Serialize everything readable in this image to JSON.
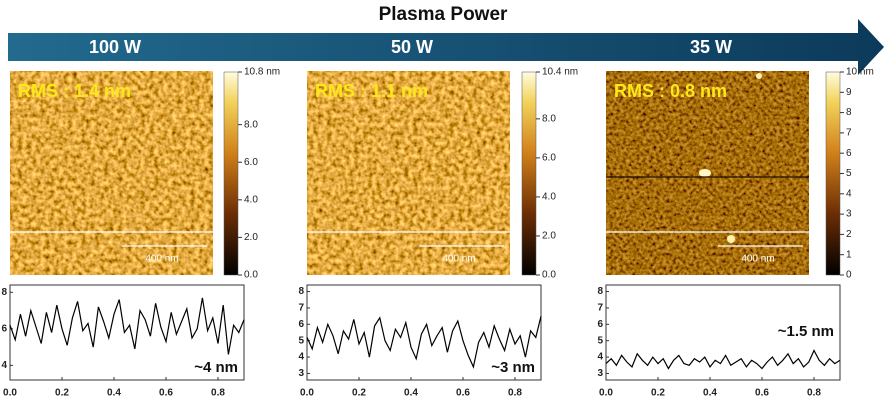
{
  "header": {
    "title": "Plasma Power"
  },
  "panels": [
    {
      "label": "100 W",
      "rms": "RMS : 1.4 nm",
      "scale_bar": "400 nm",
      "colorbar": {
        "lim": [
          0,
          10.8
        ],
        "ticks": [
          {
            "value": 0,
            "label": "0.0"
          },
          {
            "value": 2,
            "label": "2.0"
          },
          {
            "value": 4,
            "label": "4.0"
          },
          {
            "value": 6,
            "label": "6.0"
          },
          {
            "value": 8,
            "label": "8.0"
          },
          {
            "value": 10.8,
            "label": "10.8 nm"
          }
        ]
      }
    },
    {
      "label": "50 W",
      "rms": "RMS : 1.1 nm",
      "scale_bar": "400 nm",
      "colorbar": {
        "lim": [
          0,
          10.4
        ],
        "ticks": [
          {
            "value": 0,
            "label": "0.0"
          },
          {
            "value": 2,
            "label": "2.0"
          },
          {
            "value": 4,
            "label": "4.0"
          },
          {
            "value": 6,
            "label": "6.0"
          },
          {
            "value": 8,
            "label": "8.0"
          },
          {
            "value": 10.4,
            "label": "10.4 nm"
          }
        ]
      }
    },
    {
      "label": "35 W",
      "rms": "RMS : 0.8 nm",
      "scale_bar": "400 nm",
      "colorbar": {
        "lim": [
          0,
          10
        ],
        "ticks": [
          0,
          1,
          2,
          3,
          4,
          5,
          6,
          7,
          8,
          9,
          {
            "value": 10,
            "label": "10 nm"
          }
        ]
      }
    }
  ],
  "chart_data": [
    {
      "type": "line",
      "annotation": "~4 nm",
      "color": "#000000",
      "x": [
        0,
        0.02,
        0.04,
        0.06,
        0.08,
        0.1,
        0.12,
        0.14,
        0.16,
        0.18,
        0.2,
        0.22,
        0.24,
        0.26,
        0.28,
        0.3,
        0.32,
        0.34,
        0.36,
        0.38,
        0.4,
        0.42,
        0.44,
        0.46,
        0.48,
        0.5,
        0.52,
        0.54,
        0.56,
        0.58,
        0.6,
        0.62,
        0.64,
        0.66,
        0.68,
        0.7,
        0.72,
        0.74,
        0.76,
        0.78,
        0.8,
        0.82,
        0.84,
        0.86,
        0.88,
        0.9
      ],
      "values": [
        6.2,
        5.4,
        6.8,
        5.6,
        7.0,
        6.1,
        5.2,
        6.9,
        5.8,
        7.3,
        6.0,
        5.1,
        6.6,
        7.5,
        5.9,
        6.3,
        5.0,
        7.2,
        6.4,
        5.5,
        6.8,
        7.6,
        5.8,
        6.2,
        4.9,
        7.0,
        6.5,
        5.6,
        7.4,
        6.1,
        5.3,
        6.9,
        5.7,
        6.4,
        7.1,
        5.5,
        6.0,
        7.7,
        5.9,
        6.6,
        5.2,
        7.3,
        4.6,
        6.2,
        5.8,
        6.5
      ],
      "xlim": [
        0,
        0.9
      ],
      "ylim": [
        3.2,
        8.4
      ],
      "xticks": [
        {
          "value": 0,
          "label": "0.0"
        },
        0.2,
        0.4,
        0.6,
        0.8
      ],
      "yticks": [
        4,
        6,
        8
      ]
    },
    {
      "type": "line",
      "annotation": "~3 nm",
      "color": "#000000",
      "x": [
        0,
        0.02,
        0.04,
        0.06,
        0.08,
        0.1,
        0.12,
        0.14,
        0.16,
        0.18,
        0.2,
        0.22,
        0.24,
        0.26,
        0.28,
        0.3,
        0.32,
        0.34,
        0.36,
        0.38,
        0.4,
        0.42,
        0.44,
        0.46,
        0.48,
        0.5,
        0.52,
        0.54,
        0.56,
        0.58,
        0.6,
        0.62,
        0.64,
        0.66,
        0.68,
        0.7,
        0.72,
        0.74,
        0.76,
        0.78,
        0.8,
        0.82,
        0.84,
        0.86,
        0.88,
        0.9
      ],
      "values": [
        5.2,
        4.5,
        5.8,
        4.9,
        6.0,
        5.3,
        4.2,
        5.6,
        5.1,
        6.3,
        4.8,
        5.5,
        4.0,
        5.9,
        6.4,
        5.0,
        4.4,
        5.7,
        5.2,
        6.1,
        4.6,
        3.9,
        5.4,
        6.0,
        4.7,
        5.3,
        5.8,
        4.3,
        5.6,
        6.2,
        5.0,
        4.1,
        3.4,
        4.9,
        5.5,
        4.6,
        5.9,
        5.1,
        4.4,
        5.7,
        4.8,
        5.3,
        4.0,
        5.6,
        5.2,
        6.5
      ],
      "xlim": [
        0,
        0.9
      ],
      "ylim": [
        2.6,
        8.4
      ],
      "xticks": [
        {
          "value": 0,
          "label": "0.0"
        },
        0.2,
        0.4,
        0.6,
        0.8
      ],
      "yticks": [
        3,
        4,
        5,
        6,
        7,
        8
      ]
    },
    {
      "type": "line",
      "annotation": "~1.5 nm",
      "color": "#000000",
      "x": [
        0,
        0.02,
        0.04,
        0.06,
        0.08,
        0.1,
        0.12,
        0.14,
        0.16,
        0.18,
        0.2,
        0.22,
        0.24,
        0.26,
        0.28,
        0.3,
        0.32,
        0.34,
        0.36,
        0.38,
        0.4,
        0.42,
        0.44,
        0.46,
        0.48,
        0.5,
        0.52,
        0.54,
        0.56,
        0.58,
        0.6,
        0.62,
        0.64,
        0.66,
        0.68,
        0.7,
        0.72,
        0.74,
        0.76,
        0.78,
        0.8,
        0.82,
        0.84,
        0.86,
        0.88,
        0.9
      ],
      "values": [
        3.6,
        3.9,
        3.5,
        4.1,
        3.7,
        3.4,
        4.2,
        3.8,
        3.5,
        4.0,
        3.6,
        3.9,
        3.3,
        3.8,
        4.1,
        3.6,
        3.5,
        3.9,
        3.7,
        4.0,
        3.4,
        3.8,
        3.6,
        4.1,
        3.5,
        3.7,
        3.9,
        3.4,
        3.8,
        3.6,
        3.3,
        3.7,
        4.0,
        3.5,
        3.8,
        4.2,
        3.6,
        3.9,
        3.4,
        3.7,
        4.4,
        3.8,
        3.5,
        3.9,
        3.6,
        3.8
      ],
      "xlim": [
        0,
        0.9
      ],
      "ylim": [
        2.6,
        8.4
      ],
      "xticks": [
        {
          "value": 0,
          "label": "0.0"
        },
        0.2,
        0.4,
        0.6,
        0.8
      ],
      "yticks": [
        3,
        4,
        5,
        6,
        7,
        8
      ]
    }
  ]
}
